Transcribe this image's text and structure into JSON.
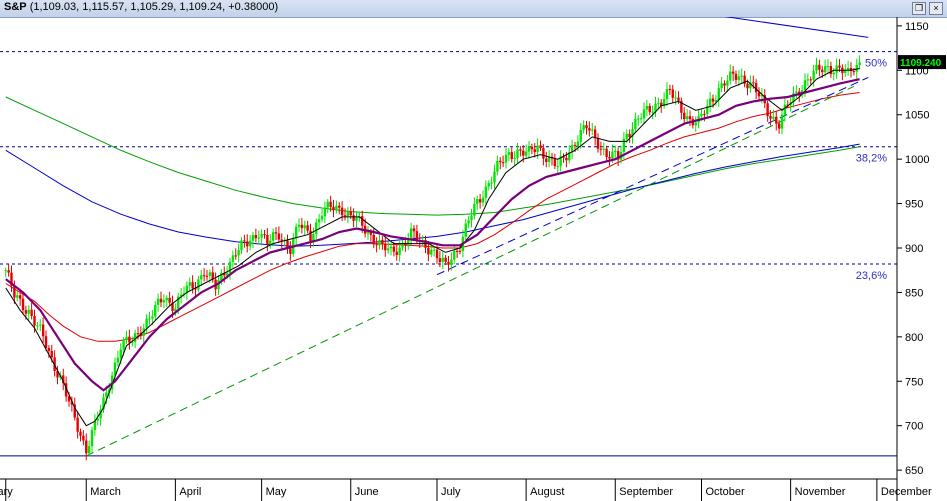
{
  "window": {
    "symbol": "S&P",
    "quote": "(1,109.03, 1,115.57, 1,105.29, 1,109.24, +0.38000)",
    "restore_glyph": "❒",
    "close_glyph": "×"
  },
  "colors": {
    "up_bar": "#00e600",
    "down_bar": "#e60000",
    "ma_red": "#e00000",
    "ma_purple": "#7a007a",
    "ma_black": "#000000",
    "ma_green": "#00a000",
    "ma_blue": "#0000cc",
    "fib_line": "#00008b",
    "trend_green": "#009900",
    "trend_blue": "#0000cc",
    "price_label_bg": "#000000",
    "price_label_fg": "#00ff00"
  },
  "chart_data": {
    "type": "candlestick",
    "ylim": [
      640,
      1160
    ],
    "y_ticks": [
      650,
      700,
      750,
      800,
      850,
      900,
      950,
      1000,
      1050,
      1100,
      1150
    ],
    "y_tick_labels": [
      "650",
      "700",
      "750",
      "800",
      "850",
      "900",
      "950",
      "1000",
      "1050",
      "1100",
      "1150"
    ],
    "months": [
      {
        "label": "ruary",
        "day": 0
      },
      {
        "label": "March",
        "day": 28
      },
      {
        "label": "April",
        "day": 59
      },
      {
        "label": "May",
        "day": 89
      },
      {
        "label": "June",
        "day": 120
      },
      {
        "label": "July",
        "day": 150
      },
      {
        "label": "August",
        "day": 181
      },
      {
        "label": "September",
        "day": 212
      },
      {
        "label": "October",
        "day": 242
      },
      {
        "label": "November",
        "day": 273
      },
      {
        "label": "December",
        "day": 303
      }
    ],
    "last_price": "1109.240",
    "last_close": 1109.24,
    "fib_levels": [
      {
        "label": "50%",
        "value": 1121
      },
      {
        "label": "38,2%",
        "value": 1014
      },
      {
        "label": "23,6%",
        "value": 882
      }
    ],
    "low_line": 666,
    "price_path": [
      [
        0,
        875
      ],
      [
        3,
        845
      ],
      [
        8,
        830
      ],
      [
        12,
        805
      ],
      [
        16,
        775
      ],
      [
        19,
        755
      ],
      [
        23,
        715
      ],
      [
        26,
        690
      ],
      [
        28,
        675
      ],
      [
        31,
        700
      ],
      [
        34,
        725
      ],
      [
        37,
        760
      ],
      [
        40,
        790
      ],
      [
        44,
        795
      ],
      [
        47,
        810
      ],
      [
        51,
        825
      ],
      [
        55,
        845
      ],
      [
        59,
        835
      ],
      [
        62,
        850
      ],
      [
        66,
        860
      ],
      [
        69,
        875
      ],
      [
        73,
        855
      ],
      [
        77,
        880
      ],
      [
        80,
        895
      ],
      [
        84,
        905
      ],
      [
        88,
        920
      ],
      [
        91,
        905
      ],
      [
        95,
        915
      ],
      [
        99,
        900
      ],
      [
        102,
        925
      ],
      [
        106,
        915
      ],
      [
        110,
        940
      ],
      [
        113,
        945
      ],
      [
        117,
        945
      ],
      [
        120,
        935
      ],
      [
        124,
        925
      ],
      [
        127,
        915
      ],
      [
        131,
        900
      ],
      [
        134,
        895
      ],
      [
        138,
        905
      ],
      [
        141,
        915
      ],
      [
        145,
        905
      ],
      [
        148,
        900
      ],
      [
        151,
        885
      ],
      [
        153,
        878
      ],
      [
        155,
        890
      ],
      [
        158,
        905
      ],
      [
        161,
        930
      ],
      [
        164,
        950
      ],
      [
        168,
        975
      ],
      [
        171,
        990
      ],
      [
        175,
        1005
      ],
      [
        178,
        1010
      ],
      [
        182,
        1005
      ],
      [
        185,
        1015
      ],
      [
        189,
        1000
      ],
      [
        192,
        990
      ],
      [
        196,
        1010
      ],
      [
        199,
        1025
      ],
      [
        202,
        1035
      ],
      [
        206,
        1020
      ],
      [
        209,
        1005
      ],
      [
        213,
        1000
      ],
      [
        216,
        1030
      ],
      [
        220,
        1045
      ],
      [
        224,
        1055
      ],
      [
        227,
        1065
      ],
      [
        231,
        1075
      ],
      [
        234,
        1060
      ],
      [
        238,
        1045
      ],
      [
        241,
        1040
      ],
      [
        245,
        1065
      ],
      [
        248,
        1080
      ],
      [
        252,
        1090
      ],
      [
        255,
        1095
      ],
      [
        259,
        1085
      ],
      [
        262,
        1070
      ],
      [
        266,
        1050
      ],
      [
        269,
        1040
      ],
      [
        272,
        1060
      ],
      [
        276,
        1080
      ],
      [
        279,
        1090
      ],
      [
        283,
        1100
      ],
      [
        286,
        1105
      ],
      [
        290,
        1100
      ],
      [
        293,
        1095
      ],
      [
        295,
        1105
      ],
      [
        297,
        1109
      ]
    ],
    "ma_short_path": [
      [
        0,
        855
      ],
      [
        5,
        830
      ],
      [
        10,
        810
      ],
      [
        15,
        780
      ],
      [
        20,
        750
      ],
      [
        24,
        720
      ],
      [
        28,
        700
      ],
      [
        31,
        705
      ],
      [
        34,
        720
      ],
      [
        38,
        755
      ],
      [
        42,
        790
      ],
      [
        46,
        800
      ],
      [
        51,
        815
      ],
      [
        57,
        835
      ],
      [
        63,
        850
      ],
      [
        69,
        860
      ],
      [
        75,
        870
      ],
      [
        81,
        880
      ],
      [
        87,
        895
      ],
      [
        93,
        905
      ],
      [
        99,
        910
      ],
      [
        105,
        915
      ],
      [
        111,
        925
      ],
      [
        117,
        935
      ],
      [
        123,
        935
      ],
      [
        129,
        920
      ],
      [
        135,
        905
      ],
      [
        141,
        905
      ],
      [
        147,
        905
      ],
      [
        153,
        895
      ],
      [
        158,
        900
      ],
      [
        163,
        920
      ],
      [
        168,
        955
      ],
      [
        174,
        985
      ],
      [
        180,
        1000
      ],
      [
        186,
        1005
      ],
      [
        192,
        1000
      ],
      [
        198,
        1010
      ],
      [
        204,
        1025
      ],
      [
        210,
        1020
      ],
      [
        216,
        1020
      ],
      [
        222,
        1040
      ],
      [
        228,
        1060
      ],
      [
        234,
        1065
      ],
      [
        240,
        1055
      ],
      [
        246,
        1060
      ],
      [
        252,
        1080
      ],
      [
        258,
        1088
      ],
      [
        264,
        1070
      ],
      [
        270,
        1055
      ],
      [
        276,
        1070
      ],
      [
        282,
        1090
      ],
      [
        288,
        1100
      ],
      [
        294,
        1100
      ],
      [
        297,
        1102
      ]
    ],
    "ma_purple_path": [
      [
        0,
        865
      ],
      [
        6,
        850
      ],
      [
        12,
        830
      ],
      [
        18,
        800
      ],
      [
        24,
        770
      ],
      [
        30,
        750
      ],
      [
        34,
        740
      ],
      [
        38,
        750
      ],
      [
        44,
        775
      ],
      [
        50,
        800
      ],
      [
        56,
        820
      ],
      [
        62,
        835
      ],
      [
        68,
        850
      ],
      [
        74,
        860
      ],
      [
        80,
        875
      ],
      [
        86,
        885
      ],
      [
        92,
        895
      ],
      [
        98,
        900
      ],
      [
        104,
        905
      ],
      [
        110,
        910
      ],
      [
        116,
        918
      ],
      [
        122,
        922
      ],
      [
        128,
        918
      ],
      [
        134,
        913
      ],
      [
        140,
        910
      ],
      [
        146,
        907
      ],
      [
        152,
        903
      ],
      [
        158,
        903
      ],
      [
        164,
        915
      ],
      [
        170,
        935
      ],
      [
        176,
        955
      ],
      [
        182,
        970
      ],
      [
        188,
        980
      ],
      [
        194,
        985
      ],
      [
        200,
        990
      ],
      [
        206,
        995
      ],
      [
        212,
        1000
      ],
      [
        218,
        1010
      ],
      [
        224,
        1020
      ],
      [
        230,
        1030
      ],
      [
        236,
        1040
      ],
      [
        242,
        1045
      ],
      [
        248,
        1050
      ],
      [
        254,
        1060
      ],
      [
        260,
        1065
      ],
      [
        266,
        1068
      ],
      [
        272,
        1070
      ],
      [
        278,
        1075
      ],
      [
        284,
        1080
      ],
      [
        290,
        1085
      ],
      [
        297,
        1090
      ]
    ],
    "ma_red_path": [
      [
        0,
        860
      ],
      [
        5,
        850
      ],
      [
        10,
        840
      ],
      [
        15,
        825
      ],
      [
        20,
        812
      ],
      [
        26,
        800
      ],
      [
        32,
        795
      ],
      [
        38,
        795
      ],
      [
        44,
        798
      ],
      [
        50,
        805
      ],
      [
        56,
        815
      ],
      [
        62,
        825
      ],
      [
        68,
        835
      ],
      [
        74,
        845
      ],
      [
        80,
        855
      ],
      [
        86,
        865
      ],
      [
        92,
        875
      ],
      [
        98,
        883
      ],
      [
        104,
        890
      ],
      [
        110,
        896
      ],
      [
        116,
        902
      ],
      [
        122,
        905
      ],
      [
        128,
        905
      ],
      [
        134,
        904
      ],
      [
        140,
        903
      ],
      [
        146,
        902
      ],
      [
        152,
        900
      ],
      [
        158,
        900
      ],
      [
        164,
        905
      ],
      [
        170,
        915
      ],
      [
        176,
        928
      ],
      [
        182,
        942
      ],
      [
        188,
        955
      ],
      [
        194,
        965
      ],
      [
        200,
        975
      ],
      [
        206,
        985
      ],
      [
        212,
        995
      ],
      [
        218,
        1003
      ],
      [
        224,
        1010
      ],
      [
        230,
        1018
      ],
      [
        236,
        1025
      ],
      [
        242,
        1030
      ],
      [
        248,
        1035
      ],
      [
        254,
        1042
      ],
      [
        260,
        1048
      ],
      [
        266,
        1052
      ],
      [
        272,
        1058
      ],
      [
        278,
        1063
      ],
      [
        284,
        1068
      ],
      [
        290,
        1072
      ],
      [
        297,
        1075
      ]
    ],
    "ma_green_path": [
      [
        0,
        1070
      ],
      [
        10,
        1055
      ],
      [
        20,
        1040
      ],
      [
        30,
        1025
      ],
      [
        40,
        1010
      ],
      [
        50,
        997
      ],
      [
        60,
        985
      ],
      [
        70,
        975
      ],
      [
        80,
        965
      ],
      [
        90,
        957
      ],
      [
        100,
        950
      ],
      [
        110,
        945
      ],
      [
        120,
        941
      ],
      [
        130,
        939
      ],
      [
        140,
        938
      ],
      [
        150,
        937
      ],
      [
        160,
        938
      ],
      [
        170,
        940
      ],
      [
        180,
        945
      ],
      [
        190,
        950
      ],
      [
        200,
        956
      ],
      [
        210,
        962
      ],
      [
        220,
        968
      ],
      [
        230,
        975
      ],
      [
        240,
        982
      ],
      [
        250,
        989
      ],
      [
        260,
        995
      ],
      [
        270,
        1000
      ],
      [
        280,
        1005
      ],
      [
        290,
        1010
      ],
      [
        297,
        1014
      ]
    ],
    "ma_blue_path": [
      [
        0,
        1010
      ],
      [
        10,
        990
      ],
      [
        20,
        970
      ],
      [
        30,
        952
      ],
      [
        40,
        938
      ],
      [
        50,
        927
      ],
      [
        60,
        918
      ],
      [
        70,
        912
      ],
      [
        80,
        907
      ],
      [
        90,
        904
      ],
      [
        100,
        902
      ],
      [
        110,
        903
      ],
      [
        120,
        905
      ],
      [
        130,
        907
      ],
      [
        140,
        910
      ],
      [
        150,
        913
      ],
      [
        160,
        918
      ],
      [
        170,
        925
      ],
      [
        180,
        932
      ],
      [
        190,
        941
      ],
      [
        200,
        950
      ],
      [
        210,
        959
      ],
      [
        220,
        968
      ],
      [
        230,
        976
      ],
      [
        240,
        984
      ],
      [
        250,
        991
      ],
      [
        260,
        997
      ],
      [
        270,
        1003
      ],
      [
        280,
        1008
      ],
      [
        290,
        1013
      ],
      [
        297,
        1017
      ]
    ],
    "trend_green": [
      [
        28,
        666
      ],
      [
        295,
        1082
      ]
    ],
    "trend_blue": [
      [
        150,
        870
      ],
      [
        300,
        1092
      ]
    ],
    "trend_top": [
      [
        213,
        1178
      ],
      [
        300,
        1137
      ]
    ]
  }
}
